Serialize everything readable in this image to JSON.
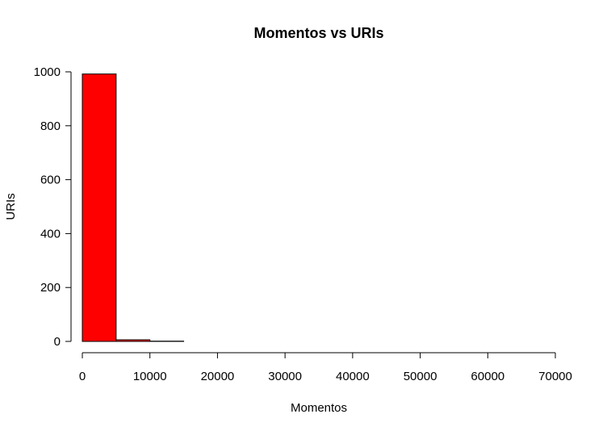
{
  "chart_data": {
    "type": "bar",
    "title": "Momentos vs URIs",
    "xlabel": "Momentos",
    "ylabel": "URIs",
    "bins": [
      {
        "x0": 0,
        "x1": 5000,
        "value": 992
      },
      {
        "x0": 5000,
        "x1": 10000,
        "value": 6
      },
      {
        "x0": 10000,
        "x1": 15000,
        "value": 1
      },
      {
        "x0": 15000,
        "x1": 20000,
        "value": 0
      },
      {
        "x0": 20000,
        "x1": 25000,
        "value": 0
      },
      {
        "x0": 25000,
        "x1": 30000,
        "value": 0
      },
      {
        "x0": 30000,
        "x1": 35000,
        "value": 0
      },
      {
        "x0": 35000,
        "x1": 40000,
        "value": 0
      },
      {
        "x0": 40000,
        "x1": 45000,
        "value": 0
      },
      {
        "x0": 45000,
        "x1": 50000,
        "value": 0
      },
      {
        "x0": 50000,
        "x1": 55000,
        "value": 0
      },
      {
        "x0": 55000,
        "x1": 60000,
        "value": 0
      },
      {
        "x0": 60000,
        "x1": 65000,
        "value": 0
      },
      {
        "x0": 65000,
        "x1": 70000,
        "value": 0
      }
    ],
    "xlim": [
      0,
      70000
    ],
    "ylim": [
      0,
      1000
    ],
    "xticks": [
      0,
      10000,
      20000,
      30000,
      40000,
      50000,
      60000,
      70000
    ],
    "yticks": [
      0,
      200,
      400,
      600,
      800,
      1000
    ],
    "bar_color": "#ff0000",
    "grid": false,
    "legend": "none"
  }
}
